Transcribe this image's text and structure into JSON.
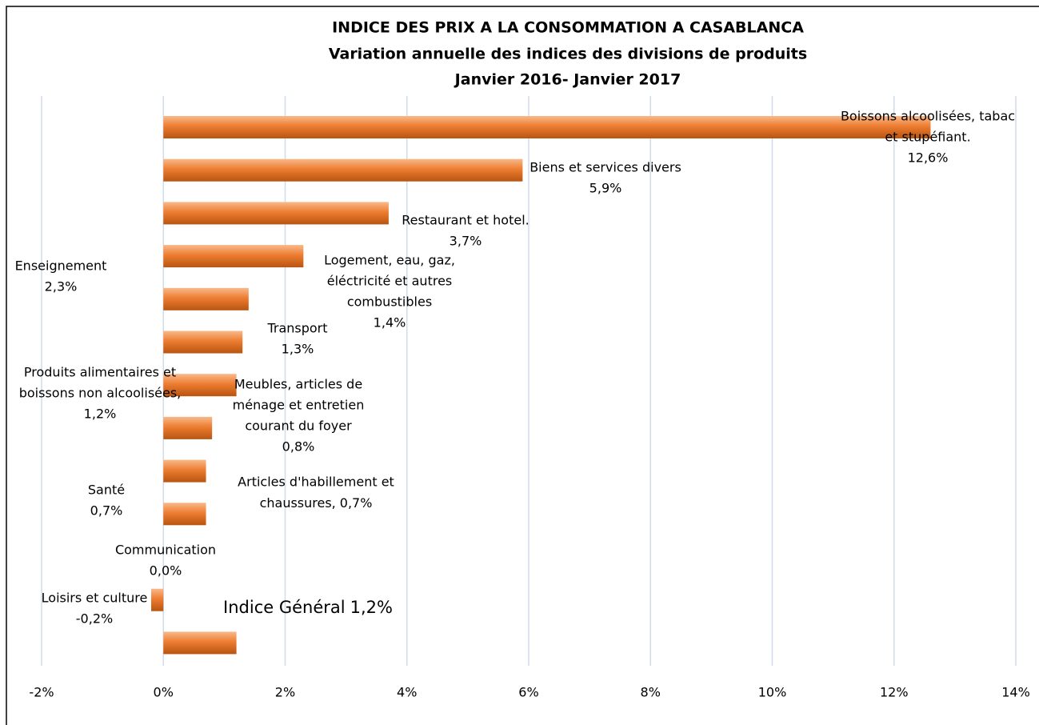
{
  "chart_data": {
    "type": "bar",
    "orientation": "horizontal",
    "title": "INDICE DES PRIX A LA CONSOMMATION A CASABLANCA",
    "subtitle": [
      "Variation annuelle des indices des divisions de produits",
      "Janvier 2016-  Janvier 2017"
    ],
    "categories": [
      [
        "Boissons alcoolisées, tabac",
        "et stupéfiant."
      ],
      [
        "Biens et services divers"
      ],
      [
        "Restaurant et hotel."
      ],
      [
        "Enseignement"
      ],
      [
        "Logement, eau, gaz,",
        "éléctricité et autres",
        "combustibles"
      ],
      [
        "Transport"
      ],
      [
        "Produits alimentaires et",
        "boissons non alcoolisées,"
      ],
      [
        "Meubles, articles de",
        "ménage et entretien",
        "courant du foyer"
      ],
      [
        "Articles d'habillement et",
        "chaussures,"
      ],
      [
        "Santé"
      ],
      [
        "Communication"
      ],
      [
        "Loisirs et culture"
      ],
      [
        "Indice Général"
      ]
    ],
    "values": [
      12.6,
      5.9,
      3.7,
      2.3,
      1.4,
      1.3,
      1.2,
      0.8,
      0.7,
      0.7,
      0.0,
      -0.2,
      1.2
    ],
    "value_labels": [
      "12,6%",
      "5,9%",
      "3,7%",
      "2,3%",
      "1,4%",
      "1,3%",
      "1,2%",
      "0,8%",
      "0,7%",
      "0,7%",
      "0,0%",
      "-0,2%",
      "1,2%"
    ],
    "color": "#ED7D31",
    "xlim": [
      -2,
      14
    ],
    "xticks": [
      {
        "value": -2,
        "label": "-2%"
      },
      {
        "value": 0,
        "label": "0%"
      },
      {
        "value": 2,
        "label": "2%"
      },
      {
        "value": 4,
        "label": "4%"
      },
      {
        "value": 6,
        "label": "6%"
      },
      {
        "value": 8,
        "label": "8%"
      },
      {
        "value": 10,
        "label": "10%"
      },
      {
        "value": 12,
        "label": "12%"
      },
      {
        "value": 14,
        "label": "14%"
      }
    ],
    "grid": true
  }
}
